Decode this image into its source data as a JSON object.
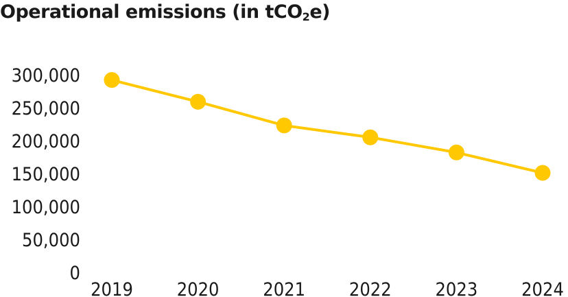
{
  "chart_data": {
    "type": "line",
    "title": "Operational emissions (in tCO",
    "title_subscript": "2",
    "title_suffix": "e)",
    "xlabel": "",
    "ylabel": "",
    "categories": [
      "2019",
      "2020",
      "2021",
      "2022",
      "2023",
      "2024"
    ],
    "series": [
      {
        "values": [
          292000,
          259000,
          223000,
          205000,
          182000,
          151000
        ],
        "color": "#FFC800"
      }
    ],
    "yticks": [
      0,
      50000,
      100000,
      150000,
      200000,
      250000,
      300000
    ],
    "ytick_labels": [
      "0",
      "50,000",
      "100,000",
      "150,000",
      "200,000",
      "250,000",
      "300,000"
    ],
    "ylim": [
      0,
      300000
    ],
    "grid": false,
    "legend": "none"
  }
}
